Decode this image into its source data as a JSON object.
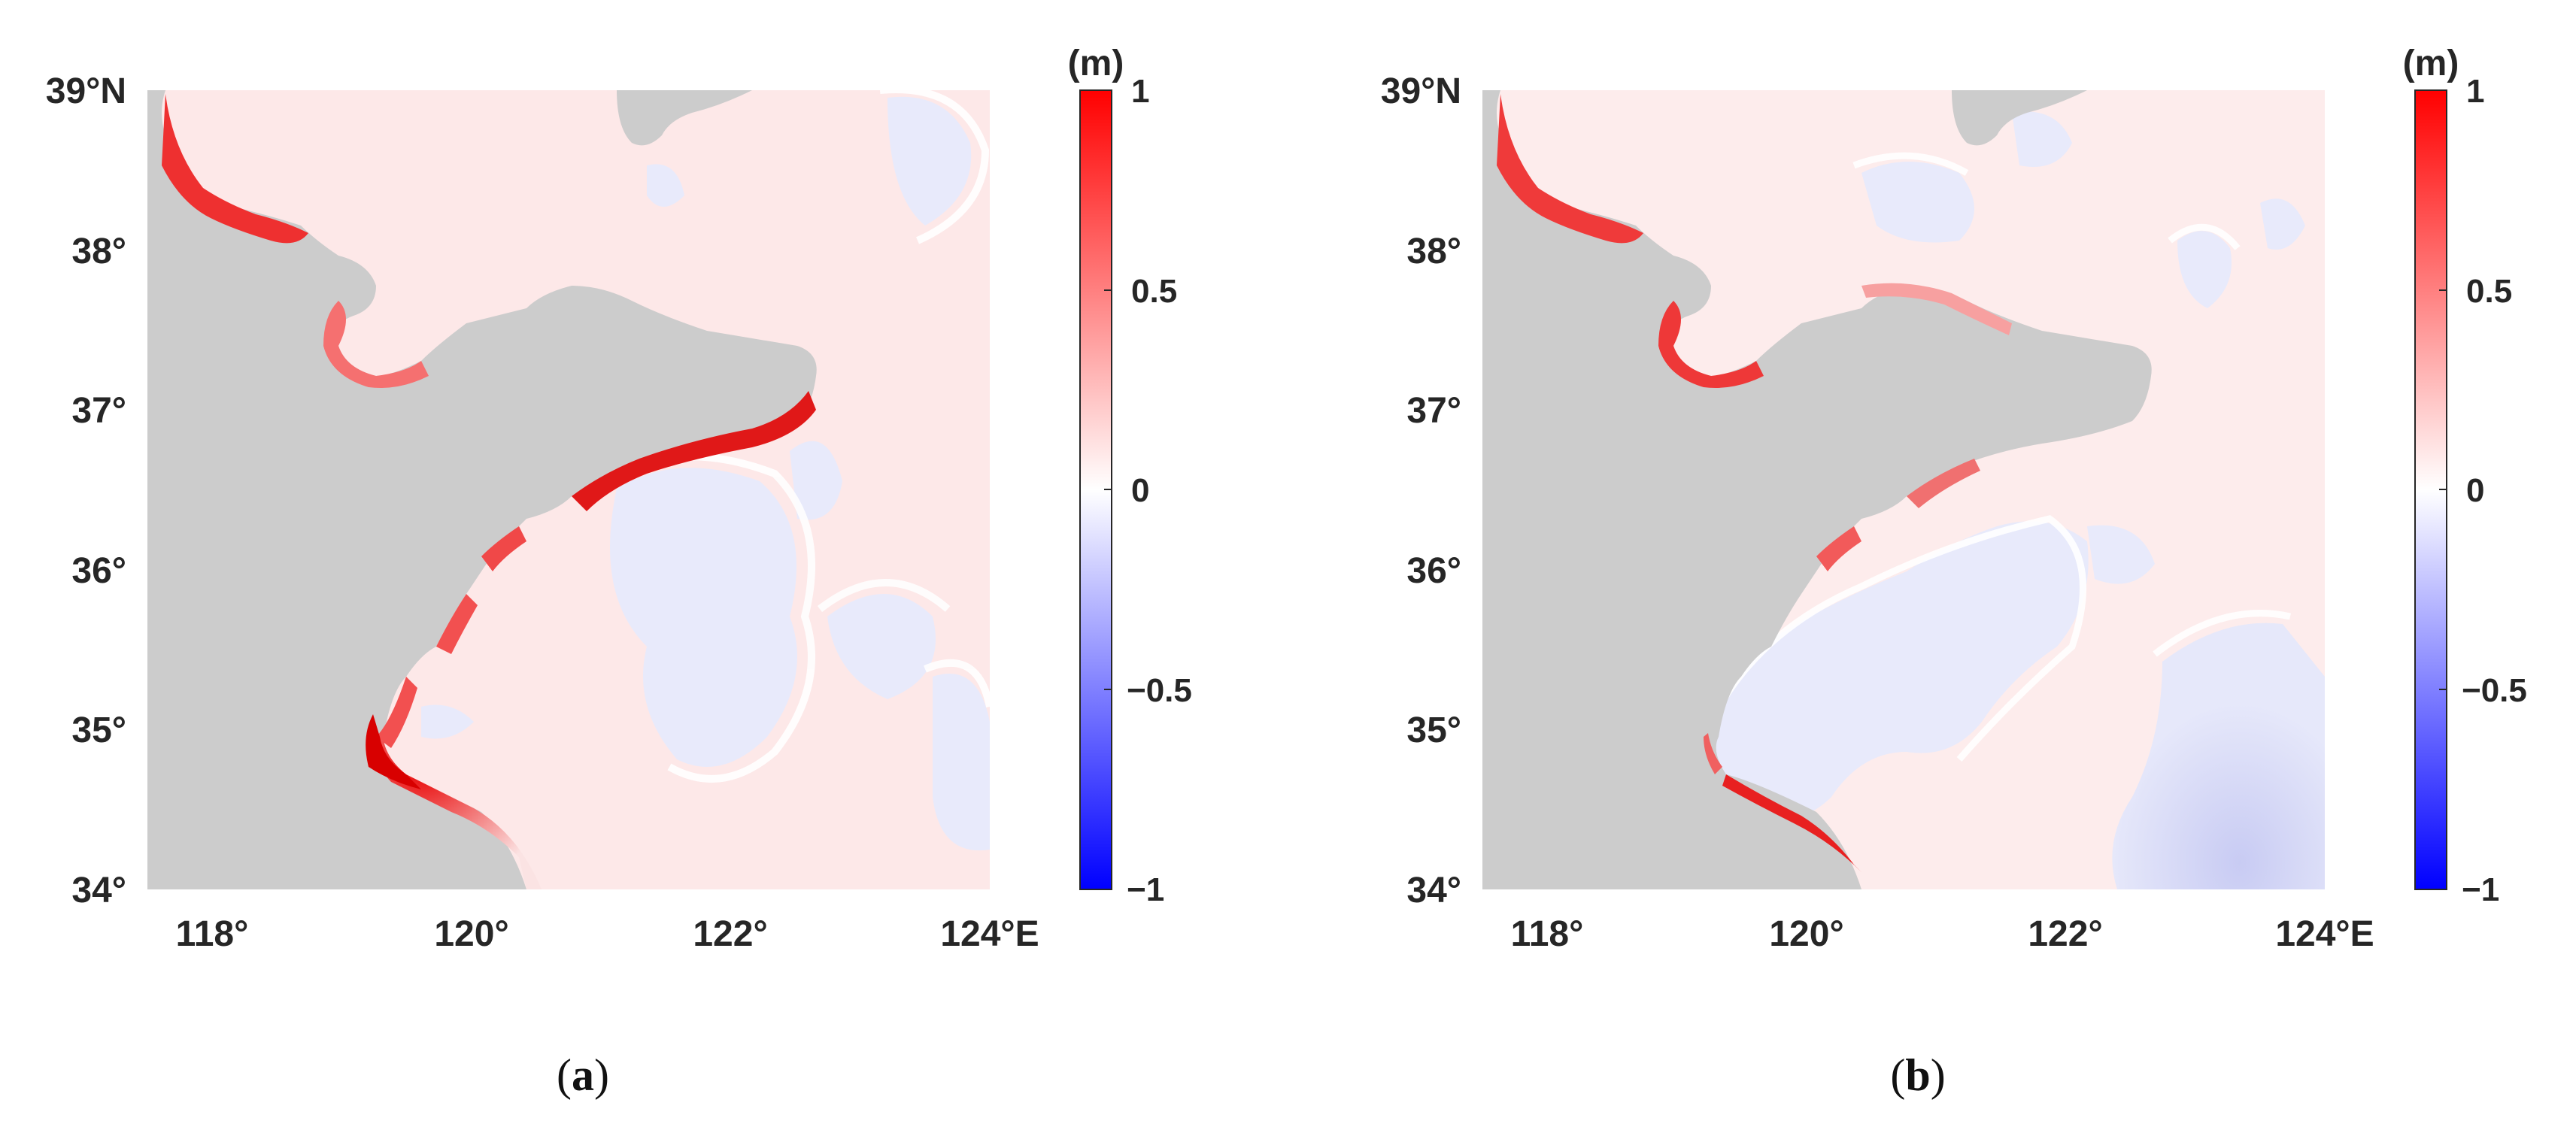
{
  "chart_data": [
    {
      "type": "heatmap",
      "panel_label": "a",
      "x_ticks": [
        "118°",
        "120°",
        "122°",
        "124°E"
      ],
      "x_tick_values": [
        118,
        120,
        122,
        124
      ],
      "y_ticks": [
        "34°",
        "35°",
        "36°",
        "37°",
        "38°",
        "39°N"
      ],
      "y_tick_values": [
        34,
        35,
        36,
        37,
        38,
        39
      ],
      "xlim": [
        117.5,
        124.0
      ],
      "ylim": [
        34.0,
        39.0
      ],
      "colorbar": {
        "unit": "(m)",
        "range": [
          -1,
          1
        ],
        "ticks": [
          "1",
          "0.5",
          "0",
          "−0.5",
          "−1"
        ],
        "tick_values": [
          1,
          0.5,
          0,
          -0.5,
          -1
        ],
        "colormap": [
          "#0000ff",
          "#ffffff",
          "#ff0000"
        ]
      },
      "land_color": "#cccccc",
      "description_values": {
        "max_positive_coastal": 0.9,
        "typical_open_sea": 0.05,
        "min_negative": -0.1
      }
    },
    {
      "type": "heatmap",
      "panel_label": "b",
      "x_ticks": [
        "118°",
        "120°",
        "122°",
        "124°E"
      ],
      "x_tick_values": [
        118,
        120,
        122,
        124
      ],
      "y_ticks": [
        "34°",
        "35°",
        "36°",
        "37°",
        "38°",
        "39°N"
      ],
      "y_tick_values": [
        34,
        35,
        36,
        37,
        38,
        39
      ],
      "xlim": [
        117.5,
        124.0
      ],
      "ylim": [
        34.0,
        39.0
      ],
      "colorbar": {
        "unit": "(m)",
        "range": [
          -1,
          1
        ],
        "ticks": [
          "1",
          "0.5",
          "0",
          "−0.5",
          "−1"
        ],
        "tick_values": [
          1,
          0.5,
          0,
          -0.5,
          -1
        ],
        "colormap": [
          "#0000ff",
          "#ffffff",
          "#ff0000"
        ]
      },
      "land_color": "#cccccc",
      "description_values": {
        "max_positive_coastal": 0.6,
        "typical_open_sea": 0.05,
        "min_negative": -0.2
      }
    }
  ]
}
